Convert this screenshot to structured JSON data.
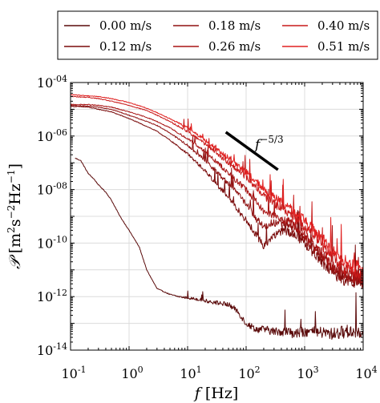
{
  "chart_data": {
    "type": "line",
    "title": "",
    "x_scale": "log",
    "y_scale": "log",
    "xlim": [
      0.1,
      10000
    ],
    "ylim": [
      1e-14,
      0.0001
    ],
    "grid": true,
    "legend_placement": "top",
    "x_tick_labels": [
      {
        "base": "10",
        "exp": "-1",
        "value": 0.1
      },
      {
        "base": "10",
        "exp": "0",
        "value": 1
      },
      {
        "base": "10",
        "exp": "1",
        "value": 10
      },
      {
        "base": "10",
        "exp": "2",
        "value": 100
      },
      {
        "base": "10",
        "exp": "3",
        "value": 1000
      },
      {
        "base": "10",
        "exp": "4",
        "value": 10000
      }
    ],
    "y_tick_labels": [
      {
        "base": "10",
        "exp": "-14",
        "value": 1e-14
      },
      {
        "base": "10",
        "exp": "-12",
        "value": 1e-12
      },
      {
        "base": "10",
        "exp": "-10",
        "value": 1e-10
      },
      {
        "base": "10",
        "exp": "-08",
        "value": 1e-08
      },
      {
        "base": "10",
        "exp": "-06",
        "value": 1e-06
      },
      {
        "base": "10",
        "exp": "-04",
        "value": 0.0001
      }
    ],
    "xlabel": {
      "symbol": "f",
      "unit": "[Hz]"
    },
    "ylabel": {
      "symbol": "𝒫",
      "unit_open": "[m",
      "sup1": "2",
      "mid1": "s",
      "sup2": "−2",
      "mid2": "Hz",
      "sup3": "−1",
      "unit_close": "]"
    },
    "annotation": {
      "base": "f",
      "exponent": "−5/3",
      "line_start": [
        45,
        1.4e-06
      ],
      "line_end": [
        350,
        5.5e-08
      ]
    },
    "series": [
      {
        "name": "0.00 m/s",
        "color": "#5a0a0a",
        "x": [
          0.12,
          0.15,
          0.18,
          0.2,
          0.25,
          0.3,
          0.4,
          0.5,
          0.7,
          1,
          1.5,
          2,
          3,
          5,
          7,
          10,
          15,
          20,
          30,
          50,
          70,
          100,
          150,
          200,
          300,
          500,
          700,
          1000,
          2000,
          3000,
          5000,
          10000
        ],
        "y": [
          1.5e-07,
          1.2e-07,
          6e-08,
          4e-08,
          2.5e-08,
          1.5e-08,
          8e-09,
          4e-09,
          1e-09,
          3e-10,
          7e-11,
          1e-11,
          2e-12,
          1.2e-12,
          1e-12,
          9e-13,
          8e-13,
          7e-13,
          6e-13,
          5e-13,
          3e-13,
          1e-13,
          6e-14,
          6e-14,
          5e-14,
          5e-14,
          4e-14,
          5e-14,
          4.5e-14,
          4e-14,
          5e-14,
          5e-14
        ]
      },
      {
        "name": "0.12 m/s",
        "color": "#7a0c0c",
        "x": [
          0.1,
          0.2,
          0.3,
          0.5,
          1,
          2,
          3,
          5,
          10,
          20,
          30,
          50,
          100,
          150,
          200,
          300,
          500,
          700,
          1000,
          2000,
          3000,
          5000,
          10000
        ],
        "y": [
          1.3e-05,
          1.2e-05,
          1e-05,
          8e-06,
          4.5e-06,
          2.3e-06,
          1.5e-06,
          7e-07,
          2.2e-07,
          5e-08,
          1.8e-08,
          5e-09,
          7e-10,
          2e-10,
          8e-11,
          2e-10,
          3e-10,
          2e-10,
          1e-10,
          2e-11,
          8e-12,
          4e-12,
          3.5e-12
        ]
      },
      {
        "name": "0.18 m/s",
        "color": "#8f1010",
        "x": [
          0.1,
          0.2,
          0.3,
          0.5,
          1,
          2,
          3,
          5,
          10,
          20,
          30,
          50,
          100,
          150,
          200,
          300,
          500,
          700,
          1000,
          2000,
          3000,
          5000,
          10000
        ],
        "y": [
          1.4e-05,
          1.3e-05,
          1.2e-05,
          1e-05,
          6e-06,
          3.5e-06,
          2.5e-06,
          1.3e-06,
          4.5e-07,
          1.2e-07,
          5e-08,
          1.7e-08,
          3e-09,
          8e-10,
          4e-10,
          6e-10,
          5e-10,
          3e-10,
          1.5e-10,
          3e-11,
          1e-11,
          5e-12,
          4e-12
        ]
      },
      {
        "name": "0.26 m/s",
        "color": "#a81414",
        "x": [
          0.1,
          0.2,
          0.3,
          0.5,
          1,
          2,
          3,
          5,
          10,
          20,
          30,
          50,
          100,
          150,
          200,
          300,
          500,
          700,
          1000,
          2000,
          3000,
          5000,
          10000
        ],
        "y": [
          1.5e-05,
          1.5e-05,
          1.4e-05,
          1.2e-05,
          8e-06,
          5e-06,
          3.5e-06,
          2e-06,
          8e-07,
          2.5e-07,
          1.2e-07,
          4e-08,
          1e-08,
          3.5e-09,
          1.5e-09,
          1e-09,
          7e-10,
          4e-10,
          2e-10,
          4e-11,
          1.5e-11,
          7e-12,
          5e-12
        ]
      },
      {
        "name": "0.40 m/s",
        "color": "#c81a1a",
        "x": [
          0.1,
          0.2,
          0.3,
          0.5,
          1,
          2,
          3,
          5,
          10,
          20,
          30,
          50,
          100,
          150,
          200,
          300,
          500,
          700,
          1000,
          2000,
          3000,
          5000,
          10000
        ],
        "y": [
          3e-05,
          2.8e-05,
          2.5e-05,
          2e-05,
          1.4e-05,
          9e-06,
          6e-06,
          3.5e-06,
          1.5e-06,
          5e-07,
          2.5e-07,
          1e-07,
          3e-08,
          1.2e-08,
          6e-09,
          3e-09,
          1.5e-09,
          8e-10,
          4e-10,
          8e-11,
          3e-11,
          1.2e-11,
          7e-12
        ]
      },
      {
        "name": "0.51 m/s",
        "color": "#e02020",
        "x": [
          0.1,
          0.2,
          0.3,
          0.5,
          1,
          2,
          3,
          5,
          10,
          20,
          30,
          50,
          100,
          150,
          200,
          300,
          500,
          700,
          1000,
          2000,
          3000,
          5000,
          10000
        ],
        "y": [
          3.5e-05,
          3.2e-05,
          3e-05,
          2.5e-05,
          1.8e-05,
          1.1e-05,
          7.5e-06,
          4.5e-06,
          2e-06,
          7e-07,
          3.5e-07,
          1.5e-07,
          4.5e-08,
          2e-08,
          1e-08,
          5e-09,
          2.5e-09,
          1.3e-09,
          7e-10,
          1.5e-10,
          5e-11,
          2e-11,
          1e-11
        ]
      }
    ]
  }
}
